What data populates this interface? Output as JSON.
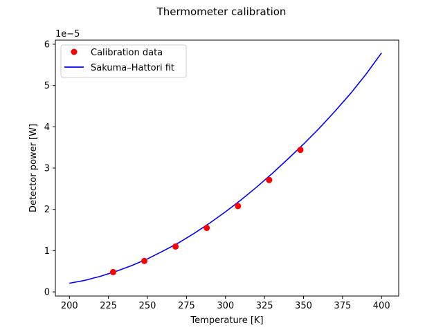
{
  "chart_data": {
    "type": "scatter",
    "title": "Thermometer calibration",
    "xlabel": "Temperature [K]",
    "ylabel": "Detector power [W]",
    "y_offset_label": "1e−5",
    "xlim": [
      191,
      411
    ],
    "ylim": [
      -0.1,
      6.1
    ],
    "x_ticks": [
      200,
      225,
      250,
      275,
      300,
      325,
      350,
      375,
      400
    ],
    "x_tick_labels": [
      "200",
      "225",
      "250",
      "275",
      "300",
      "325",
      "350",
      "375",
      "400"
    ],
    "y_ticks": [
      0,
      1,
      2,
      3,
      4,
      5,
      6
    ],
    "y_tick_labels": [
      "0",
      "1",
      "2",
      "3",
      "4",
      "5",
      "6"
    ],
    "grid": false,
    "legend_position": "upper-left",
    "series": [
      {
        "name": "Calibration data",
        "kind": "scatter",
        "color": "#ff0000",
        "x": [
          228,
          248,
          268,
          288,
          308,
          328,
          348
        ],
        "y": [
          0.48,
          0.75,
          1.1,
          1.55,
          2.08,
          2.71,
          3.44
        ]
      },
      {
        "name": "Sakuma–Hattori fit",
        "kind": "line",
        "color": "#0000ff",
        "x": [
          200,
          210,
          220,
          230,
          240,
          250,
          260,
          270,
          280,
          290,
          300,
          310,
          320,
          330,
          340,
          350,
          360,
          370,
          380,
          390,
          400
        ],
        "y": [
          0.21,
          0.28,
          0.38,
          0.5,
          0.64,
          0.8,
          0.99,
          1.19,
          1.42,
          1.67,
          1.94,
          2.23,
          2.54,
          2.87,
          3.22,
          3.58,
          3.96,
          4.37,
          4.8,
          5.27,
          5.79
        ]
      }
    ]
  }
}
